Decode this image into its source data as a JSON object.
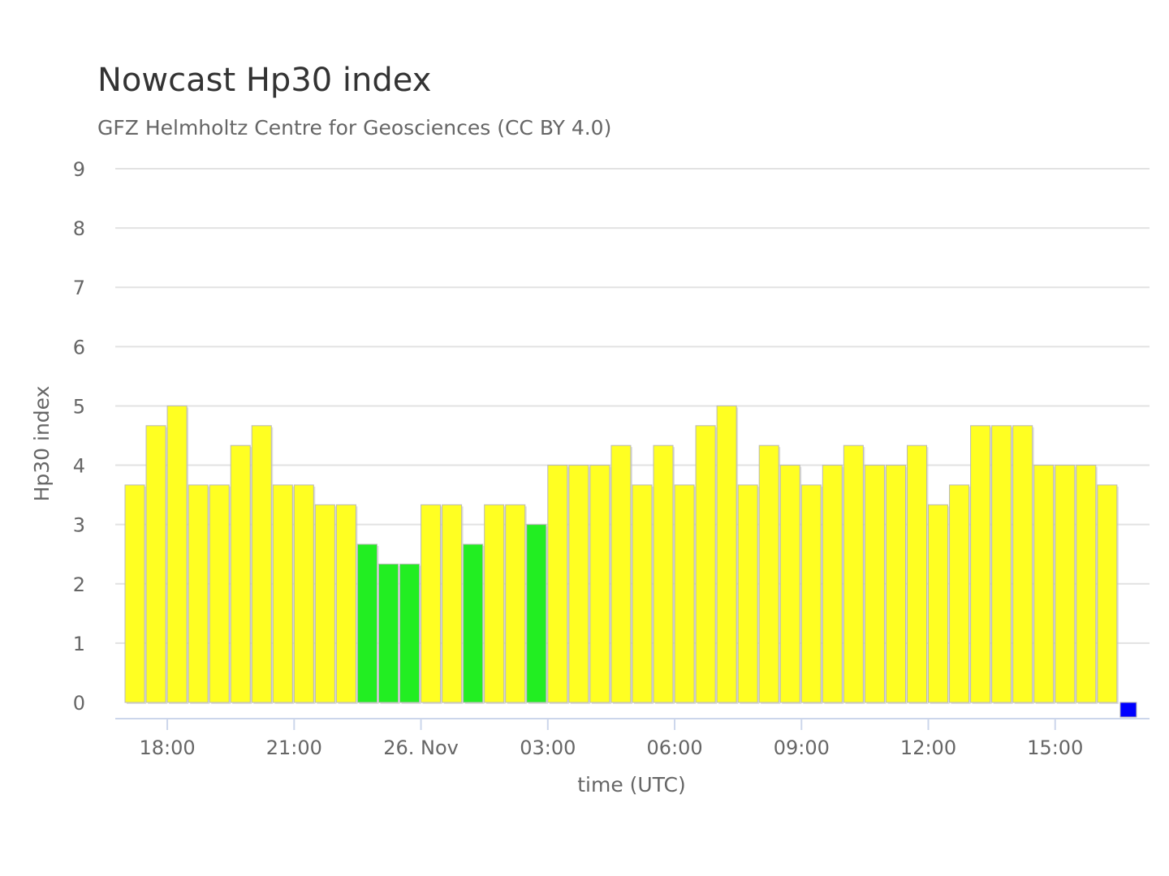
{
  "chart_data": {
    "type": "bar",
    "title": "Nowcast Hp30 index",
    "subtitle": "GFZ Helmholtz Centre for Geosciences (CC BY 4.0)",
    "xlabel": "time (UTC)",
    "ylabel": "Hp30 index",
    "ylim": [
      0,
      9
    ],
    "yticks": [
      "0",
      "1",
      "2",
      "3",
      "4",
      "5",
      "6",
      "7",
      "8",
      "9"
    ],
    "grid": true,
    "x_start_utc_hour": 17.0,
    "bar_interval_hours": 0.5,
    "xticks": [
      {
        "label": "18:00",
        "hour": 18
      },
      {
        "label": "21:00",
        "hour": 21
      },
      {
        "label": "26. Nov",
        "hour": 24
      },
      {
        "label": "03:00",
        "hour": 27
      },
      {
        "label": "06:00",
        "hour": 30
      },
      {
        "label": "09:00",
        "hour": 33
      },
      {
        "label": "12:00",
        "hour": 36
      },
      {
        "label": "15:00",
        "hour": 39
      }
    ],
    "values": [
      3.667,
      4.667,
      5,
      3.667,
      3.667,
      4.333,
      4.667,
      3.667,
      3.667,
      3.333,
      3.333,
      2.667,
      2.333,
      2.333,
      3.333,
      3.333,
      2.667,
      3.333,
      3.333,
      3,
      4,
      4,
      4,
      4.333,
      3.667,
      4.333,
      3.667,
      4.667,
      5,
      3.667,
      4.333,
      4,
      3.667,
      4,
      4.333,
      4,
      4,
      4.333,
      3.333,
      3.667,
      4.667,
      4.667,
      4.667,
      4,
      4,
      4,
      3.667,
      0
    ],
    "color_rules": [
      {
        "below": 0.5,
        "color": "#0000ff"
      },
      {
        "below": 3.34,
        "color": "#22ee22"
      },
      {
        "below": 5.5,
        "color": "#ffff22"
      }
    ],
    "bar_color_overrides": {
      "9": "#ffff22",
      "10": "#ffff22",
      "14": "#ffff22",
      "15": "#ffff22",
      "17": "#ffff22",
      "18": "#ffff22",
      "38": "#ffff22"
    },
    "bar_colors": {
      "yellow": "#ffff22",
      "green": "#22ee22",
      "blue": "#0000ff"
    }
  }
}
